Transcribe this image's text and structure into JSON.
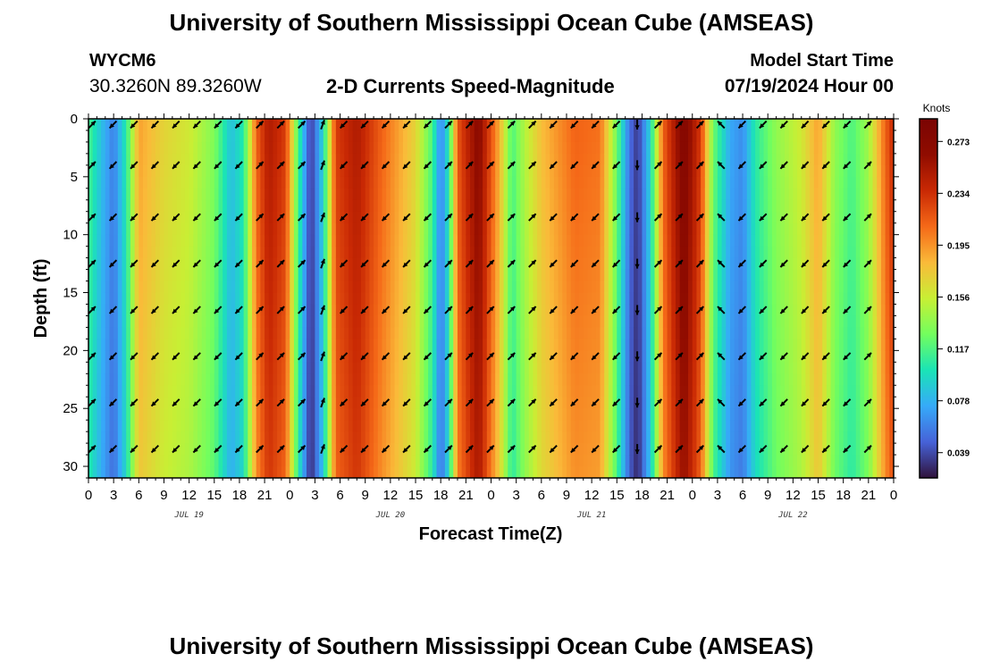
{
  "header": {
    "title_top": "University of Southern Mississippi Ocean Cube (AMSEAS)",
    "title_bottom": "University of Southern Mississippi Ocean Cube (AMSEAS)",
    "station_id": "WYCM6",
    "station_coords": "30.3260N  89.3260W",
    "plot_title": "2-D Currents Speed-Magnitude",
    "start_label": "Model Start Time",
    "start_value": "07/19/2024 Hour 00"
  },
  "chart_data": {
    "type": "heatmap",
    "title": "2-D Currents Speed-Magnitude",
    "xlabel": "Forecast Time(Z)",
    "ylabel": "Depth (ft)",
    "colorbar_label": "Knots",
    "ylim": [
      0,
      31
    ],
    "y_ticks": [
      "0",
      "5",
      "10",
      "15",
      "20",
      "25",
      "30"
    ],
    "x_ticks": [
      "0",
      "3",
      "6",
      "9",
      "12",
      "15",
      "18",
      "21",
      "0",
      "3",
      "6",
      "9",
      "12",
      "15",
      "18",
      "21",
      "0",
      "3",
      "6",
      "9",
      "12",
      "15",
      "18",
      "21",
      "0",
      "3",
      "6",
      "9",
      "12",
      "15",
      "18",
      "21",
      "0"
    ],
    "forecast_hours_range": [
      0,
      96
    ],
    "day_labels": [
      {
        "hour": 12,
        "label": "JUL 19"
      },
      {
        "hour": 36,
        "label": "JUL 20"
      },
      {
        "hour": 60,
        "label": "JUL 21"
      },
      {
        "hour": 84,
        "label": "JUL 22"
      }
    ],
    "colorbar_range": [
      0.02,
      0.29
    ],
    "colorbar_ticks": [
      "0.273",
      "0.234",
      "0.195",
      "0.156",
      "0.117",
      "0.078",
      "0.039"
    ],
    "speed_profile": [
      {
        "hour": 0,
        "speed": 0.11
      },
      {
        "hour": 1.5,
        "speed": 0.08
      },
      {
        "hour": 3,
        "speed": 0.055
      },
      {
        "hour": 4.5,
        "speed": 0.1
      },
      {
        "hour": 6,
        "speed": 0.18
      },
      {
        "hour": 9,
        "speed": 0.16
      },
      {
        "hour": 12,
        "speed": 0.15
      },
      {
        "hour": 15,
        "speed": 0.125
      },
      {
        "hour": 17,
        "speed": 0.08
      },
      {
        "hour": 18.5,
        "speed": 0.1
      },
      {
        "hour": 20,
        "speed": 0.2
      },
      {
        "hour": 21.5,
        "speed": 0.235
      },
      {
        "hour": 23.5,
        "speed": 0.215
      },
      {
        "hour": 25,
        "speed": 0.11
      },
      {
        "hour": 26.5,
        "speed": 0.03
      },
      {
        "hour": 28,
        "speed": 0.09
      },
      {
        "hour": 29.5,
        "speed": 0.215
      },
      {
        "hour": 32,
        "speed": 0.235
      },
      {
        "hour": 35,
        "speed": 0.2
      },
      {
        "hour": 39,
        "speed": 0.16
      },
      {
        "hour": 41,
        "speed": 0.11
      },
      {
        "hour": 42,
        "speed": 0.055
      },
      {
        "hour": 43,
        "speed": 0.1
      },
      {
        "hour": 44,
        "speed": 0.205
      },
      {
        "hour": 46.5,
        "speed": 0.255
      },
      {
        "hour": 49,
        "speed": 0.175
      },
      {
        "hour": 50.5,
        "speed": 0.11
      },
      {
        "hour": 52,
        "speed": 0.14
      },
      {
        "hour": 54,
        "speed": 0.17
      },
      {
        "hour": 58,
        "speed": 0.2
      },
      {
        "hour": 61,
        "speed": 0.195
      },
      {
        "hour": 63,
        "speed": 0.12
      },
      {
        "hour": 64.5,
        "speed": 0.05
      },
      {
        "hour": 65.5,
        "speed": 0.03
      },
      {
        "hour": 67,
        "speed": 0.09
      },
      {
        "hour": 68.5,
        "speed": 0.2
      },
      {
        "hour": 71,
        "speed": 0.265
      },
      {
        "hour": 73,
        "speed": 0.215
      },
      {
        "hour": 74.5,
        "speed": 0.12
      },
      {
        "hour": 76.5,
        "speed": 0.07
      },
      {
        "hour": 78,
        "speed": 0.06
      },
      {
        "hour": 79.5,
        "speed": 0.1
      },
      {
        "hour": 82,
        "speed": 0.13
      },
      {
        "hour": 85,
        "speed": 0.15
      },
      {
        "hour": 87,
        "speed": 0.18
      },
      {
        "hour": 89,
        "speed": 0.13
      },
      {
        "hour": 91,
        "speed": 0.11
      },
      {
        "hour": 93,
        "speed": 0.135
      },
      {
        "hour": 95,
        "speed": 0.2
      },
      {
        "hour": 96,
        "speed": 0.225
      }
    ],
    "vector_depths_ft": [
      0.5,
      4,
      8.5,
      12.5,
      16.5,
      20.5,
      24.5,
      28.5
    ],
    "vector_directions": [
      {
        "hour": 0,
        "dir": 45
      },
      {
        "hour": 2.5,
        "dir": 225
      },
      {
        "hour": 5,
        "dir": 225
      },
      {
        "hour": 7.5,
        "dir": 225
      },
      {
        "hour": 10,
        "dir": 225
      },
      {
        "hour": 12.5,
        "dir": 225
      },
      {
        "hour": 15,
        "dir": 225
      },
      {
        "hour": 17.5,
        "dir": 225
      },
      {
        "hour": 20,
        "dir": 45
      },
      {
        "hour": 22.5,
        "dir": 45
      },
      {
        "hour": 25,
        "dir": 45
      },
      {
        "hour": 27.5,
        "dir": 20
      },
      {
        "hour": 30,
        "dir": 225
      },
      {
        "hour": 32.5,
        "dir": 225
      },
      {
        "hour": 35,
        "dir": 225
      },
      {
        "hour": 37.5,
        "dir": 225
      },
      {
        "hour": 40,
        "dir": 225
      },
      {
        "hour": 42.5,
        "dir": 45
      },
      {
        "hour": 45,
        "dir": 45
      },
      {
        "hour": 47.5,
        "dir": 45
      },
      {
        "hour": 50,
        "dir": 45
      },
      {
        "hour": 52.5,
        "dir": 45
      },
      {
        "hour": 55,
        "dir": 225
      },
      {
        "hour": 57.5,
        "dir": 225
      },
      {
        "hour": 60,
        "dir": 225
      },
      {
        "hour": 62.5,
        "dir": 225
      },
      {
        "hour": 65,
        "dir": 180
      },
      {
        "hour": 67.5,
        "dir": 45
      },
      {
        "hour": 70,
        "dir": 45
      },
      {
        "hour": 72.5,
        "dir": 45
      },
      {
        "hour": 75,
        "dir": 315
      },
      {
        "hour": 77.5,
        "dir": 225
      },
      {
        "hour": 80,
        "dir": 225
      },
      {
        "hour": 82.5,
        "dir": 225
      },
      {
        "hour": 85,
        "dir": 225
      },
      {
        "hour": 87.5,
        "dir": 225
      },
      {
        "hour": 90,
        "dir": 225
      },
      {
        "hour": 92.5,
        "dir": 45
      }
    ]
  }
}
